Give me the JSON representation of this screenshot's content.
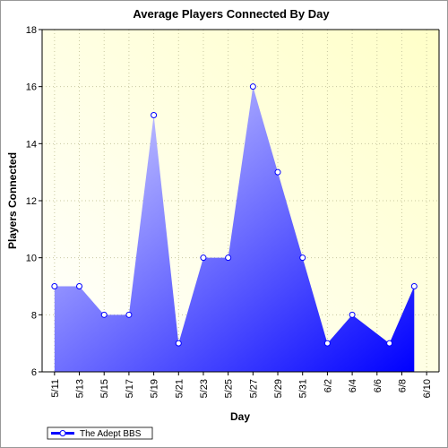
{
  "chart_data": {
    "type": "area",
    "title": "Average Players Connected By Day",
    "x_label": "Day",
    "y_label": "Players Connected",
    "x": [
      "5/11",
      "5/13",
      "5/15",
      "5/17",
      "5/19",
      "5/21",
      "5/23",
      "5/25",
      "5/27",
      "5/29",
      "5/31",
      "6/2",
      "6/4",
      "6/7",
      "6/9"
    ],
    "series": [
      {
        "name": "The Adept BBS",
        "color": "#0000ff",
        "values": [
          9,
          9,
          8,
          8,
          15,
          7,
          10,
          10,
          16,
          13,
          10,
          7,
          8,
          7,
          9
        ]
      }
    ],
    "xlim": [
      "5/10",
      "6/11"
    ],
    "xticks": [
      "5/11",
      "5/13",
      "5/15",
      "5/17",
      "5/19",
      "5/21",
      "5/23",
      "5/25",
      "5/27",
      "5/29",
      "5/31",
      "6/2",
      "6/4",
      "6/6",
      "6/8",
      "6/10"
    ],
    "ylim": [
      6,
      18
    ],
    "yticks": [
      6,
      8,
      10,
      12,
      14,
      16,
      18
    ],
    "grid": true,
    "legend": "bottom-left"
  }
}
